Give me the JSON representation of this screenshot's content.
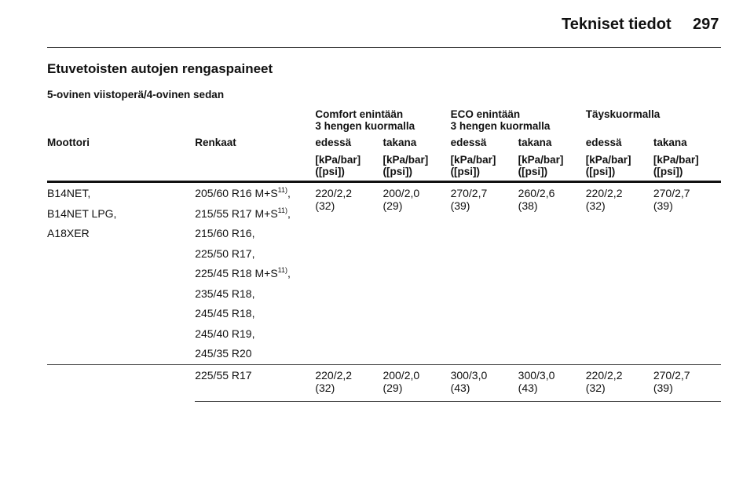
{
  "header": {
    "title": "Tekniset tiedot",
    "page": "297"
  },
  "section_title": "Etuvetoisten autojen rengaspaineet",
  "subsection_title": "5-ovinen viistoperä/4-ovinen sedan",
  "table": {
    "groups": [
      {
        "line1": "Comfort enintään",
        "line2": "3 hengen kuormalla"
      },
      {
        "line1": "ECO enintään",
        "line2": "3 hengen kuormalla"
      },
      {
        "line1": "Täyskuormalla",
        "line2": ""
      }
    ],
    "columns": {
      "engine": "Moottori",
      "tyres": "Renkaat",
      "pos": [
        "edessä",
        "takana",
        "edessä",
        "takana",
        "edessä",
        "takana"
      ]
    },
    "unit_line1": "[kPa/bar]",
    "unit_line2": "([psi])",
    "rows": [
      {
        "engines": [
          "B14NET,",
          "B14NET LPG,",
          "A18XER"
        ],
        "tyres": [
          {
            "text": "205/60 R16 M+S",
            "sup": "11)",
            "after": ","
          },
          {
            "text": "215/55 R17 M+S",
            "sup": "11)",
            "after": ","
          },
          {
            "text": "215/60 R16,",
            "sup": "",
            "after": ""
          },
          {
            "text": "225/50 R17,",
            "sup": "",
            "after": ""
          },
          {
            "text": "225/45 R18 M+S",
            "sup": "11)",
            "after": ","
          },
          {
            "text": "235/45 R18,",
            "sup": "",
            "after": ""
          },
          {
            "text": "245/45 R18,",
            "sup": "",
            "after": ""
          },
          {
            "text": "245/40 R19,",
            "sup": "",
            "after": ""
          },
          {
            "text": "245/35 R20",
            "sup": "",
            "after": ""
          }
        ],
        "values": [
          {
            "bar": "220/2,2",
            "psi": "(32)"
          },
          {
            "bar": "200/2,0",
            "psi": "(29)"
          },
          {
            "bar": "270/2,7",
            "psi": "(39)"
          },
          {
            "bar": "260/2,6",
            "psi": "(38)"
          },
          {
            "bar": "220/2,2",
            "psi": "(32)"
          },
          {
            "bar": "270/2,7",
            "psi": "(39)"
          }
        ]
      },
      {
        "engines": [],
        "tyres": [
          {
            "text": "225/55 R17",
            "sup": "",
            "after": ""
          }
        ],
        "values": [
          {
            "bar": "220/2,2",
            "psi": "(32)"
          },
          {
            "bar": "200/2,0",
            "psi": "(29)"
          },
          {
            "bar": "300/3,0",
            "psi": "(43)"
          },
          {
            "bar": "300/3,0",
            "psi": "(43)"
          },
          {
            "bar": "220/2,2",
            "psi": "(32)"
          },
          {
            "bar": "270/2,7",
            "psi": "(39)"
          }
        ]
      }
    ]
  }
}
